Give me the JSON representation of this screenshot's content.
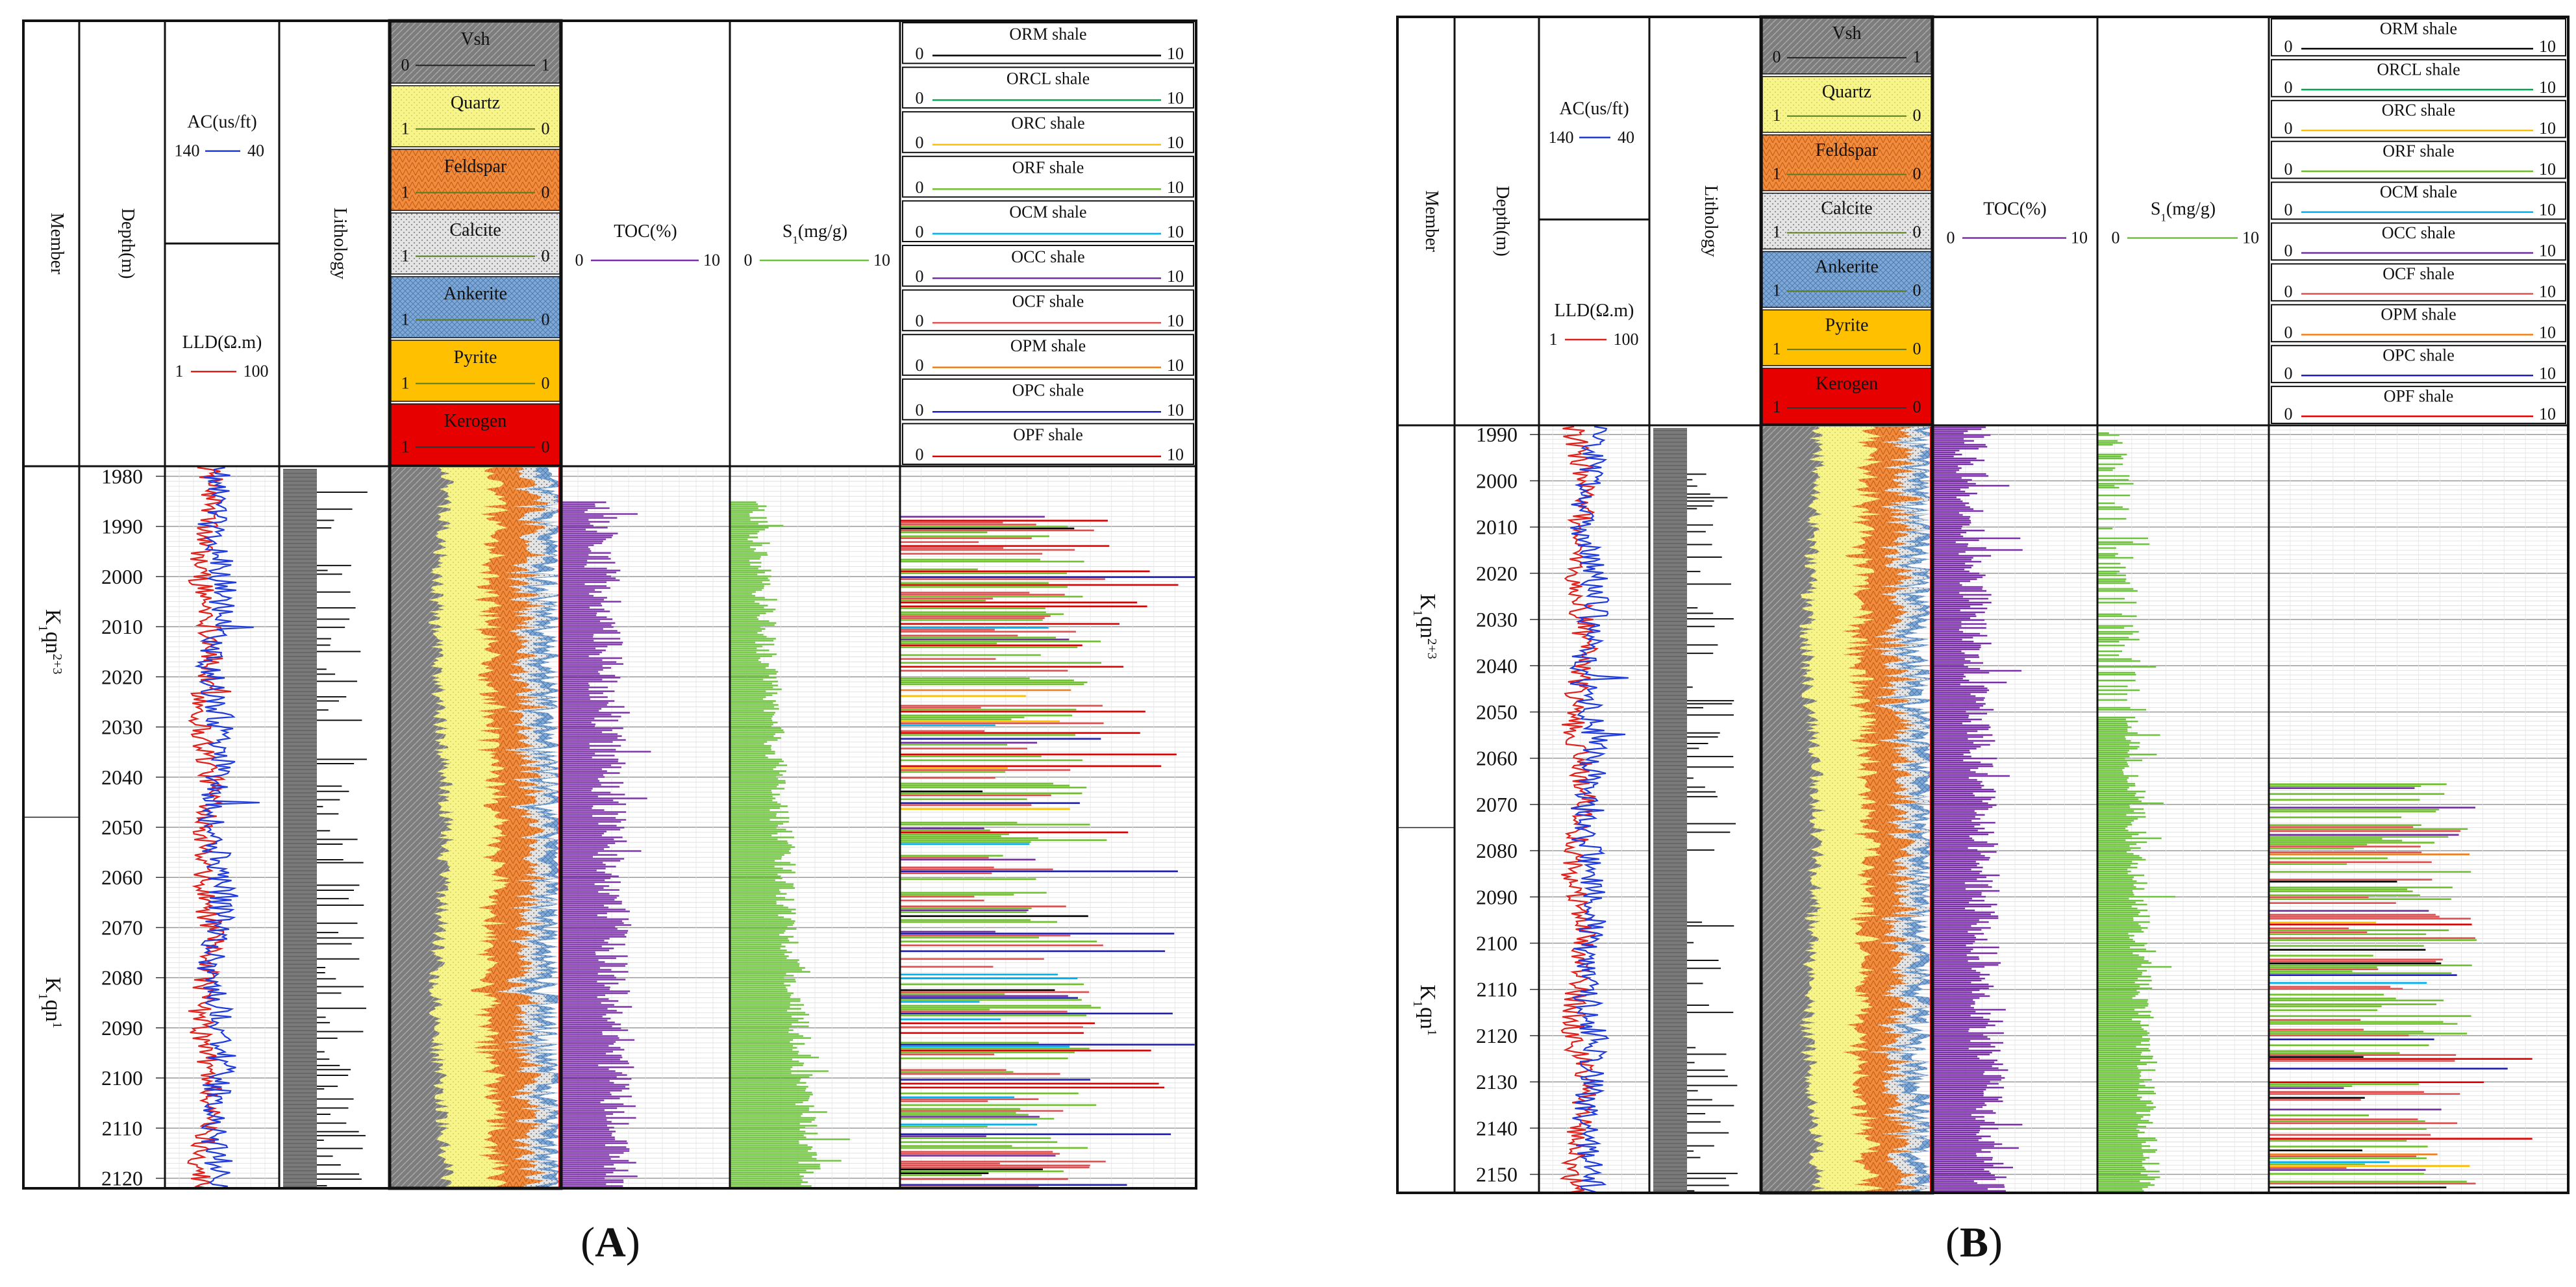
{
  "panels": [
    {
      "label": "(A)",
      "header": {
        "member": "Member",
        "depth": "Depth(m)",
        "ac": {
          "title": "AC(us/ft)",
          "left": "140",
          "right": "40"
        },
        "lld": {
          "title": "LLD(Ω.m)",
          "left": "1",
          "right": "100"
        },
        "lithology": "Lithology",
        "minerals": [
          {
            "name": "Vsh",
            "left": "0",
            "right": "1",
            "color": "#8c8c8c"
          },
          {
            "name": "Quartz",
            "left": "1",
            "right": "0",
            "color": "#f7f58a"
          },
          {
            "name": "Feldspar",
            "left": "1",
            "right": "0",
            "color": "#f08c3c"
          },
          {
            "name": "Calcite",
            "left": "1",
            "right": "0",
            "color": "#d9d9d9"
          },
          {
            "name": "Ankerite",
            "left": "1",
            "right": "0",
            "color": "#7fa8d6"
          },
          {
            "name": "Pyrite",
            "left": "1",
            "right": "0",
            "color": "#ffc000"
          },
          {
            "name": "Kerogen",
            "left": "1",
            "right": "0",
            "color": "#e60000"
          }
        ],
        "toc": {
          "title": "TOC(%)",
          "left": "0",
          "right": "10"
        },
        "s1": {
          "title": "S1(mg/g)",
          "left": "0",
          "right": "10"
        },
        "shales": [
          {
            "name": "ORM shale",
            "left": "0",
            "right": "10",
            "color": "#000000"
          },
          {
            "name": "ORCL shale",
            "left": "0",
            "right": "10",
            "color": "#00a651"
          },
          {
            "name": "ORC shale",
            "left": "0",
            "right": "10",
            "color": "#ffc000"
          },
          {
            "name": "ORF shale",
            "left": "0",
            "right": "10",
            "color": "#70c030"
          },
          {
            "name": "OCM shale",
            "left": "0",
            "right": "10",
            "color": "#00b0f0"
          },
          {
            "name": "OCC shale",
            "left": "0",
            "right": "10",
            "color": "#7030a0"
          },
          {
            "name": "OCF shale",
            "left": "0",
            "right": "10",
            "color": "#e05050"
          },
          {
            "name": "OPM shale",
            "left": "0",
            "right": "10",
            "color": "#f08020"
          },
          {
            "name": "OPC shale",
            "left": "0",
            "right": "10",
            "color": "#1f1fb4"
          },
          {
            "name": "OPF shale",
            "left": "0",
            "right": "10",
            "color": "#e00000"
          }
        ]
      },
      "members": [
        "K1qn2+3",
        "K1qn1"
      ],
      "depth_range": [
        1978,
        2122
      ],
      "depth_ticks": [
        1980,
        1990,
        2000,
        2010,
        2020,
        2030,
        2040,
        2050,
        2060,
        2070,
        2080,
        2090,
        2100,
        2110,
        2120
      ],
      "member_boundary_depth": 2048
    },
    {
      "label": "(B)",
      "header": {
        "member": "Member",
        "depth": "Depth(m)",
        "ac": {
          "title": "AC(us/ft)",
          "left": "140",
          "right": "40"
        },
        "lld": {
          "title": "LLD(Ω.m)",
          "left": "1",
          "right": "100"
        },
        "lithology": "Lithology",
        "minerals": [
          {
            "name": "Vsh",
            "left": "0",
            "right": "1",
            "color": "#8c8c8c"
          },
          {
            "name": "Quartz",
            "left": "1",
            "right": "0",
            "color": "#f7f58a"
          },
          {
            "name": "Feldspar",
            "left": "1",
            "right": "0",
            "color": "#f08c3c"
          },
          {
            "name": "Calcite",
            "left": "1",
            "right": "0",
            "color": "#d9d9d9"
          },
          {
            "name": "Ankerite",
            "left": "1",
            "right": "0",
            "color": "#7fa8d6"
          },
          {
            "name": "Pyrite",
            "left": "1",
            "right": "0",
            "color": "#ffc000"
          },
          {
            "name": "Kerogen",
            "left": "1",
            "right": "0",
            "color": "#e60000"
          }
        ],
        "toc": {
          "title": "TOC(%)",
          "left": "0",
          "right": "10"
        },
        "s1": {
          "title": "S1(mg/g)",
          "left": "0",
          "right": "10"
        },
        "shales": [
          {
            "name": "ORM shale",
            "left": "0",
            "right": "10",
            "color": "#000000"
          },
          {
            "name": "ORCL shale",
            "left": "0",
            "right": "10",
            "color": "#00a651"
          },
          {
            "name": "ORC shale",
            "left": "0",
            "right": "10",
            "color": "#ffc000"
          },
          {
            "name": "ORF shale",
            "left": "0",
            "right": "10",
            "color": "#70c030"
          },
          {
            "name": "OCM shale",
            "left": "0",
            "right": "10",
            "color": "#00b0f0"
          },
          {
            "name": "OCC shale",
            "left": "0",
            "right": "10",
            "color": "#7030a0"
          },
          {
            "name": "OCF shale",
            "left": "0",
            "right": "10",
            "color": "#e05050"
          },
          {
            "name": "OPM shale",
            "left": "0",
            "right": "10",
            "color": "#f08020"
          },
          {
            "name": "OPC shale",
            "left": "0",
            "right": "10",
            "color": "#1f1fb4"
          },
          {
            "name": "OPF shale",
            "left": "0",
            "right": "10",
            "color": "#e00000"
          }
        ]
      },
      "members": [
        "K1qn2+3",
        "K1qn1"
      ],
      "depth_range": [
        1988,
        2154
      ],
      "depth_ticks": [
        1990,
        2000,
        2010,
        2020,
        2030,
        2040,
        2050,
        2060,
        2070,
        2080,
        2090,
        2100,
        2110,
        2120,
        2130,
        2140,
        2150
      ],
      "member_boundary_depth": 2075
    }
  ]
}
